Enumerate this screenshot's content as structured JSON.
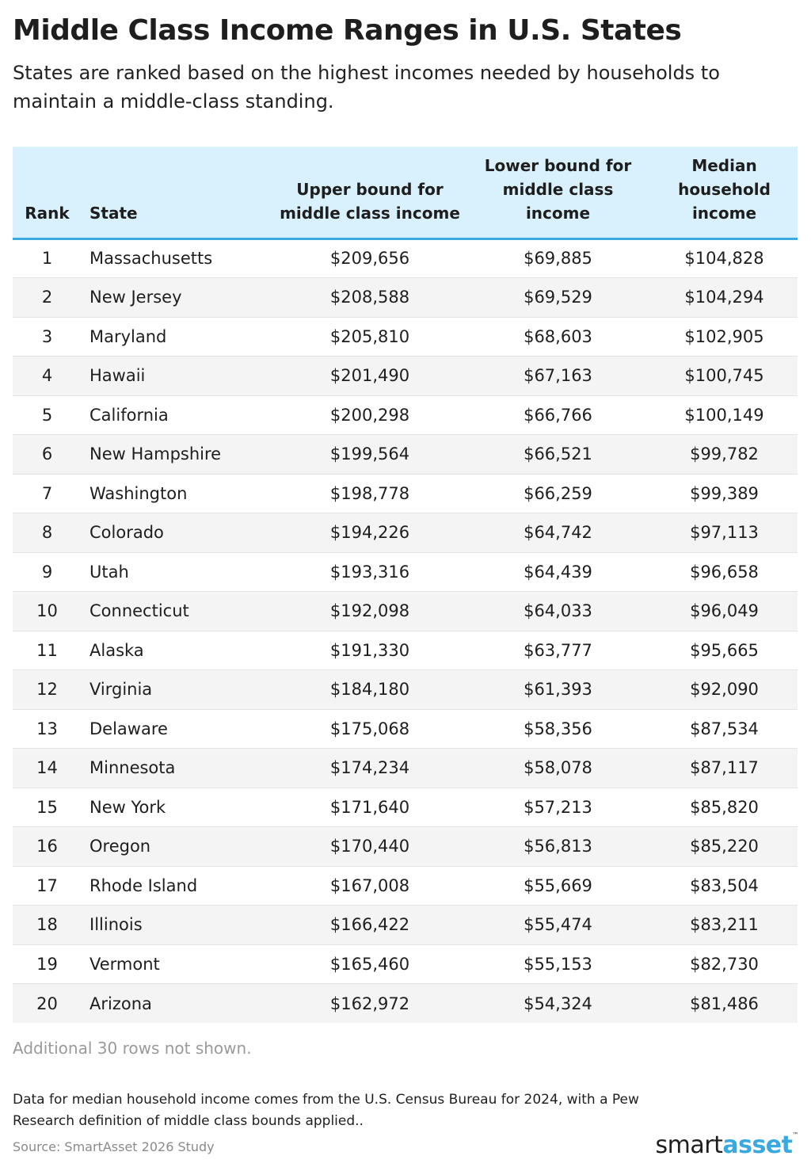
{
  "title": "Middle Class Income Ranges in U.S. States",
  "subtitle": "States are ranked based on the highest incomes needed by households to maintain a middle-class standing.",
  "note": "Additional 30 rows not shown.",
  "footnote": "Data for median household income comes from the U.S. Census Bureau for 2024, with a Pew Research definition of middle class bounds applied..",
  "source": "Source: SmartAsset 2026 Study",
  "logo": {
    "part1": "smart",
    "part2": "asset",
    "tm": "™"
  },
  "colors": {
    "header_bg": "#d9f1fd",
    "header_rule": "#3aa9df",
    "stripe": "#f4f4f4",
    "brand": "#3aa9df"
  },
  "chart_data": {
    "type": "table",
    "title": "Middle Class Income Ranges in U.S. States",
    "columns": [
      "Rank",
      "State",
      "Upper bound for middle class income",
      "Lower bound for middle class income",
      "Median household income"
    ],
    "rows": [
      [
        "1",
        "Massachusetts",
        "$209,656",
        "$69,885",
        "$104,828"
      ],
      [
        "2",
        "New Jersey",
        "$208,588",
        "$69,529",
        "$104,294"
      ],
      [
        "3",
        "Maryland",
        "$205,810",
        "$68,603",
        "$102,905"
      ],
      [
        "4",
        "Hawaii",
        "$201,490",
        "$67,163",
        "$100,745"
      ],
      [
        "5",
        "California",
        "$200,298",
        "$66,766",
        "$100,149"
      ],
      [
        "6",
        "New Hampshire",
        "$199,564",
        "$66,521",
        "$99,782"
      ],
      [
        "7",
        "Washington",
        "$198,778",
        "$66,259",
        "$99,389"
      ],
      [
        "8",
        "Colorado",
        "$194,226",
        "$64,742",
        "$97,113"
      ],
      [
        "9",
        "Utah",
        "$193,316",
        "$64,439",
        "$96,658"
      ],
      [
        "10",
        "Connecticut",
        "$192,098",
        "$64,033",
        "$96,049"
      ],
      [
        "11",
        "Alaska",
        "$191,330",
        "$63,777",
        "$95,665"
      ],
      [
        "12",
        "Virginia",
        "$184,180",
        "$61,393",
        "$92,090"
      ],
      [
        "13",
        "Delaware",
        "$175,068",
        "$58,356",
        "$87,534"
      ],
      [
        "14",
        "Minnesota",
        "$174,234",
        "$58,078",
        "$87,117"
      ],
      [
        "15",
        "New York",
        "$171,640",
        "$57,213",
        "$85,820"
      ],
      [
        "16",
        "Oregon",
        "$170,440",
        "$56,813",
        "$85,220"
      ],
      [
        "17",
        "Rhode Island",
        "$167,008",
        "$55,669",
        "$83,504"
      ],
      [
        "18",
        "Illinois",
        "$166,422",
        "$55,474",
        "$83,211"
      ],
      [
        "19",
        "Vermont",
        "$165,460",
        "$55,153",
        "$82,730"
      ],
      [
        "20",
        "Arizona",
        "$162,972",
        "$54,324",
        "$81,486"
      ]
    ]
  }
}
